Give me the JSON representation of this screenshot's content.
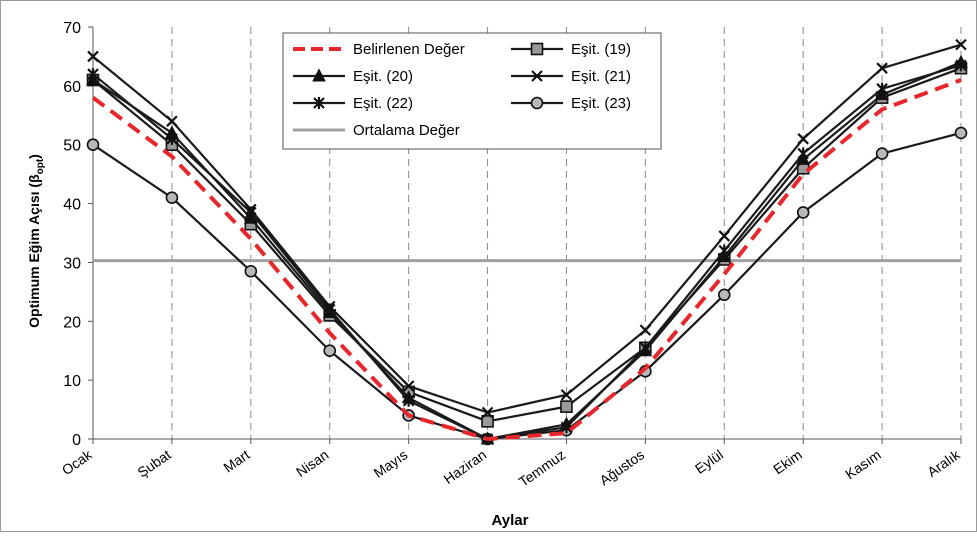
{
  "chart_data": {
    "type": "line",
    "xlabel": "Aylar",
    "ylabel": "Optimum Eğim Açısı (β",
    "ylabel_sub": "opt",
    "ylabel_close": ")",
    "ylim": [
      0,
      70
    ],
    "yticks": [
      0,
      10,
      20,
      30,
      40,
      50,
      60,
      70
    ],
    "grid": {
      "vertical": "dashed",
      "horizontal": "none"
    },
    "legend_position": "top-center",
    "categories": [
      "Ocak",
      "Şubat",
      "Mart",
      "Nisan",
      "Mayıs",
      "Haziran",
      "Temmuz",
      "Ağustos",
      "Eylül",
      "Ekim",
      "Kasım",
      "Aralık"
    ],
    "series": [
      {
        "name": "Belirlenen Değer",
        "color": "#e8262b",
        "dash": "dashed",
        "marker": "none",
        "values": [
          58,
          48,
          34,
          18,
          4,
          0,
          1,
          12,
          28,
          45,
          56,
          61
        ]
      },
      {
        "name": "Eşit. (19)",
        "color": "#1a1a1a",
        "dash": "solid",
        "marker": "square",
        "values": [
          61,
          50,
          36.5,
          21,
          8,
          3,
          5.5,
          15.5,
          30.5,
          46,
          58,
          63
        ]
      },
      {
        "name": "Eşit. (20)",
        "color": "#1a1a1a",
        "dash": "solid",
        "marker": "triangle",
        "values": [
          61,
          52,
          37.5,
          21.5,
          7,
          0,
          2.5,
          15,
          31,
          47.5,
          58.5,
          64
        ]
      },
      {
        "name": "Eşit. (21)",
        "color": "#1a1a1a",
        "dash": "solid",
        "marker": "x",
        "values": [
          65,
          54,
          39,
          22.5,
          9,
          4.5,
          7.5,
          18.5,
          34.5,
          51,
          63,
          67
        ]
      },
      {
        "name": "Eşit. (22)",
        "color": "#1a1a1a",
        "dash": "solid",
        "marker": "star",
        "values": [
          62,
          51,
          38.5,
          22,
          6.5,
          0,
          2,
          15.5,
          32,
          48.5,
          59.5,
          63.5
        ]
      },
      {
        "name": "Eşit. (23)",
        "color": "#1a1a1a",
        "dash": "solid",
        "marker": "circle",
        "values": [
          50,
          41,
          28.5,
          15,
          4,
          0,
          1.5,
          11.5,
          24.5,
          38.5,
          48.5,
          52
        ]
      },
      {
        "name": "Ortalama Değer",
        "color": "#a0a0a0",
        "dash": "solid",
        "marker": "none",
        "type": "hline",
        "value": 30.3
      }
    ]
  }
}
